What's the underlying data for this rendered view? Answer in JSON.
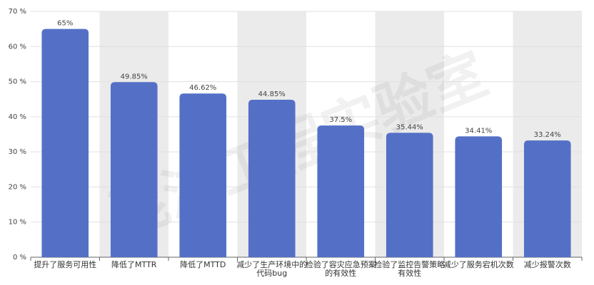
{
  "chart_data": {
    "type": "bar",
    "watermark": "混沌工程实验室",
    "categories": [
      "提升了服务可用性",
      "降低了MTTR",
      "降低了MTTD",
      "减少了生产环境中的代码bug",
      "检验了容灾应急预案的有效性",
      "检验了监控告警策略有效性",
      "减少了服务宕机次数",
      "减少报警次数"
    ],
    "values": [
      65,
      49.85,
      46.62,
      44.85,
      37.5,
      35.44,
      34.41,
      33.24
    ],
    "value_labels": [
      "65%",
      "49.85%",
      "46.62%",
      "44.85%",
      "37.5%",
      "35.44%",
      "34.41%",
      "33.24%"
    ],
    "color": "#5470c6",
    "ylim": [
      0,
      70
    ],
    "yticks": [
      {
        "value": 0,
        "label": "0 %"
      },
      {
        "value": 10,
        "label": "10 %"
      },
      {
        "value": 20,
        "label": "20 %"
      },
      {
        "value": 30,
        "label": "30 %"
      },
      {
        "value": 40,
        "label": "40 %"
      },
      {
        "value": 50,
        "label": "50 %"
      },
      {
        "value": 60,
        "label": "60 %"
      },
      {
        "value": 70,
        "label": "70 %"
      }
    ],
    "grid": true
  }
}
